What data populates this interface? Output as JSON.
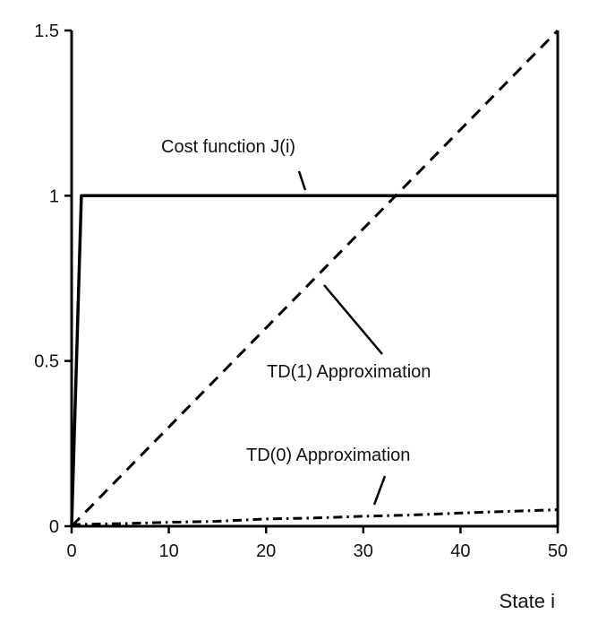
{
  "chart_data": {
    "type": "line",
    "title": "",
    "xlabel": "State i",
    "ylabel": "",
    "xlim": [
      0,
      50
    ],
    "ylim": [
      0,
      1.5
    ],
    "x_ticks": [
      "0",
      "10",
      "20",
      "30",
      "40",
      "50"
    ],
    "y_ticks": [
      "0",
      "0.5",
      "1",
      "1.5"
    ],
    "grid": false,
    "series": [
      {
        "name": "Cost function J(i)",
        "style": "solid",
        "x": [
          0,
          1,
          2,
          5,
          10,
          15,
          20,
          25,
          30,
          35,
          40,
          45,
          50
        ],
        "y": [
          0,
          1,
          1,
          1,
          1,
          1,
          1,
          1,
          1,
          1,
          1,
          1,
          1
        ]
      },
      {
        "name": "TD(1) Approximation",
        "style": "dashed",
        "x": [
          0,
          10,
          20,
          30,
          40,
          50
        ],
        "y": [
          0,
          0.3,
          0.6,
          0.9,
          1.2,
          1.5
        ]
      },
      {
        "name": "TD(0) Approximation",
        "style": "dashdot",
        "x": [
          0,
          5,
          10,
          15,
          20,
          25,
          30,
          35,
          40,
          45,
          50
        ],
        "y": [
          0.005,
          0.008,
          0.012,
          0.015,
          0.022,
          0.025,
          0.03,
          0.034,
          0.04,
          0.045,
          0.05
        ]
      }
    ],
    "annotations": [
      "Cost function J(i)",
      "TD(1) Approximation",
      "TD(0) Approximation"
    ]
  }
}
